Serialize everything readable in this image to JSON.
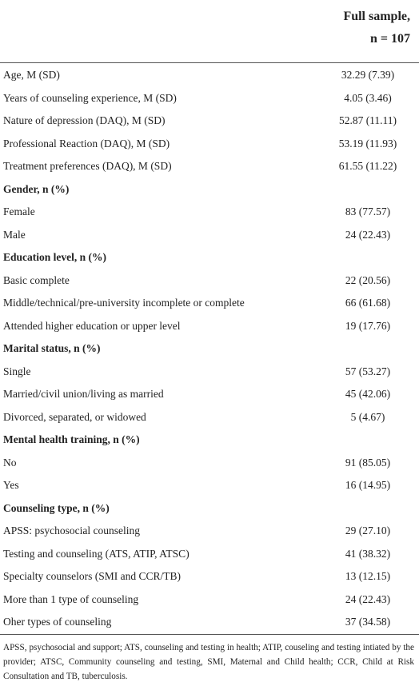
{
  "table": {
    "header": [
      "Full sample,",
      "n = 107"
    ],
    "rows": [
      [
        "Age, M (SD)",
        "32.29 (7.39)"
      ],
      [
        "Years of counseling experience, M (SD)",
        "4.05 (3.46)"
      ],
      [
        "Nature of depression (DAQ), M (SD)",
        "52.87 (11.11)"
      ],
      [
        "Professional Reaction (DAQ), M (SD)",
        "53.19 (11.93)"
      ],
      [
        "Treatment preferences (DAQ), M (SD)",
        "61.55 (11.22)"
      ],
      [
        "Gender, n (%)"
      ],
      [
        "Female",
        "83 (77.57)"
      ],
      [
        "Male",
        "24 (22.43)"
      ],
      [
        "Education level, n (%)"
      ],
      [
        "Basic complete",
        "22 (20.56)"
      ],
      [
        "Middle/technical/pre-university incomplete or complete",
        "66 (61.68)"
      ],
      [
        "Attended higher education or upper level",
        "19 (17.76)"
      ],
      [
        "Marital status, n (%)"
      ],
      [
        "Single",
        "57 (53.27)"
      ],
      [
        "Married/civil union/living as married",
        "45 (42.06)"
      ],
      [
        "Divorced, separated, or widowed",
        "5 (4.67)"
      ],
      [
        "Mental health training, n (%)"
      ],
      [
        "No",
        "91 (85.05)"
      ],
      [
        "Yes",
        "16 (14.95)"
      ],
      [
        "Counseling type, n (%)"
      ],
      [
        "APSS: psychosocial counseling",
        "29 (27.10)"
      ],
      [
        "Testing and counseling (ATS, ATIP, ATSC)",
        "41 (38.32)"
      ],
      [
        "Specialty counselors (SMI and CCR/TB)",
        "13 (12.15)"
      ],
      [
        "More than 1 type of counseling",
        "24 (22.43)"
      ],
      [
        "Oher types of counseling",
        "37 (34.58)"
      ]
    ],
    "footnote": "APSS, psychosocial and support; ATS, counseling and testing in health; ATIP, couseling and testing intiated by the provider; ATSC, Community counseling and testing, SMI, Maternal and Child health; CCR, Child at Risk Consultation and TB, tuberculosis."
  }
}
